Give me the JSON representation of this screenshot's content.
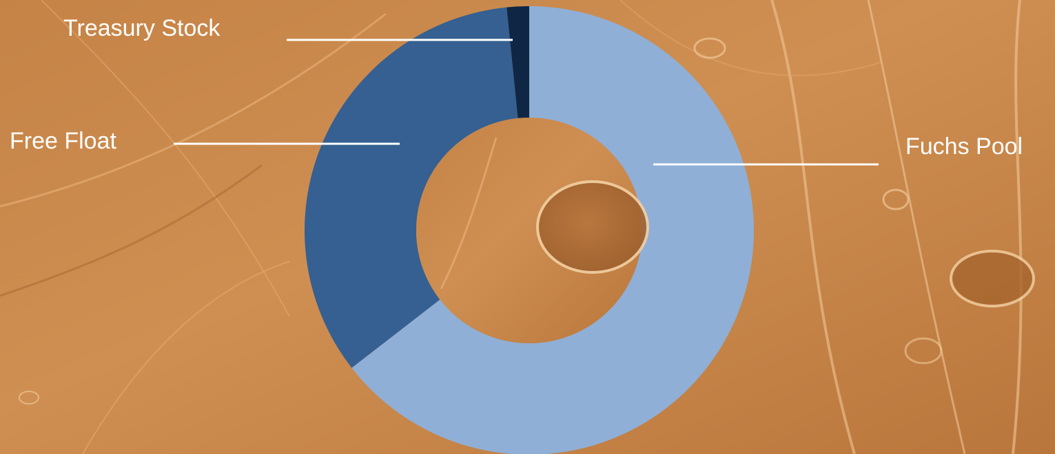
{
  "chart_data": {
    "type": "pie",
    "variant": "donut",
    "title": "",
    "slices": [
      {
        "label": "Fuchs Pool",
        "value": 64.5,
        "color": "#8fafd6"
      },
      {
        "label": "Free Float",
        "value": 33.9,
        "color": "#356091"
      },
      {
        "label": "Treasury Stock",
        "value": 1.6,
        "color": "#0f2745"
      }
    ],
    "leader_line_color": "#ffffff",
    "label_color": "#ffffff"
  },
  "background": {
    "description_color": "#c9864a"
  }
}
